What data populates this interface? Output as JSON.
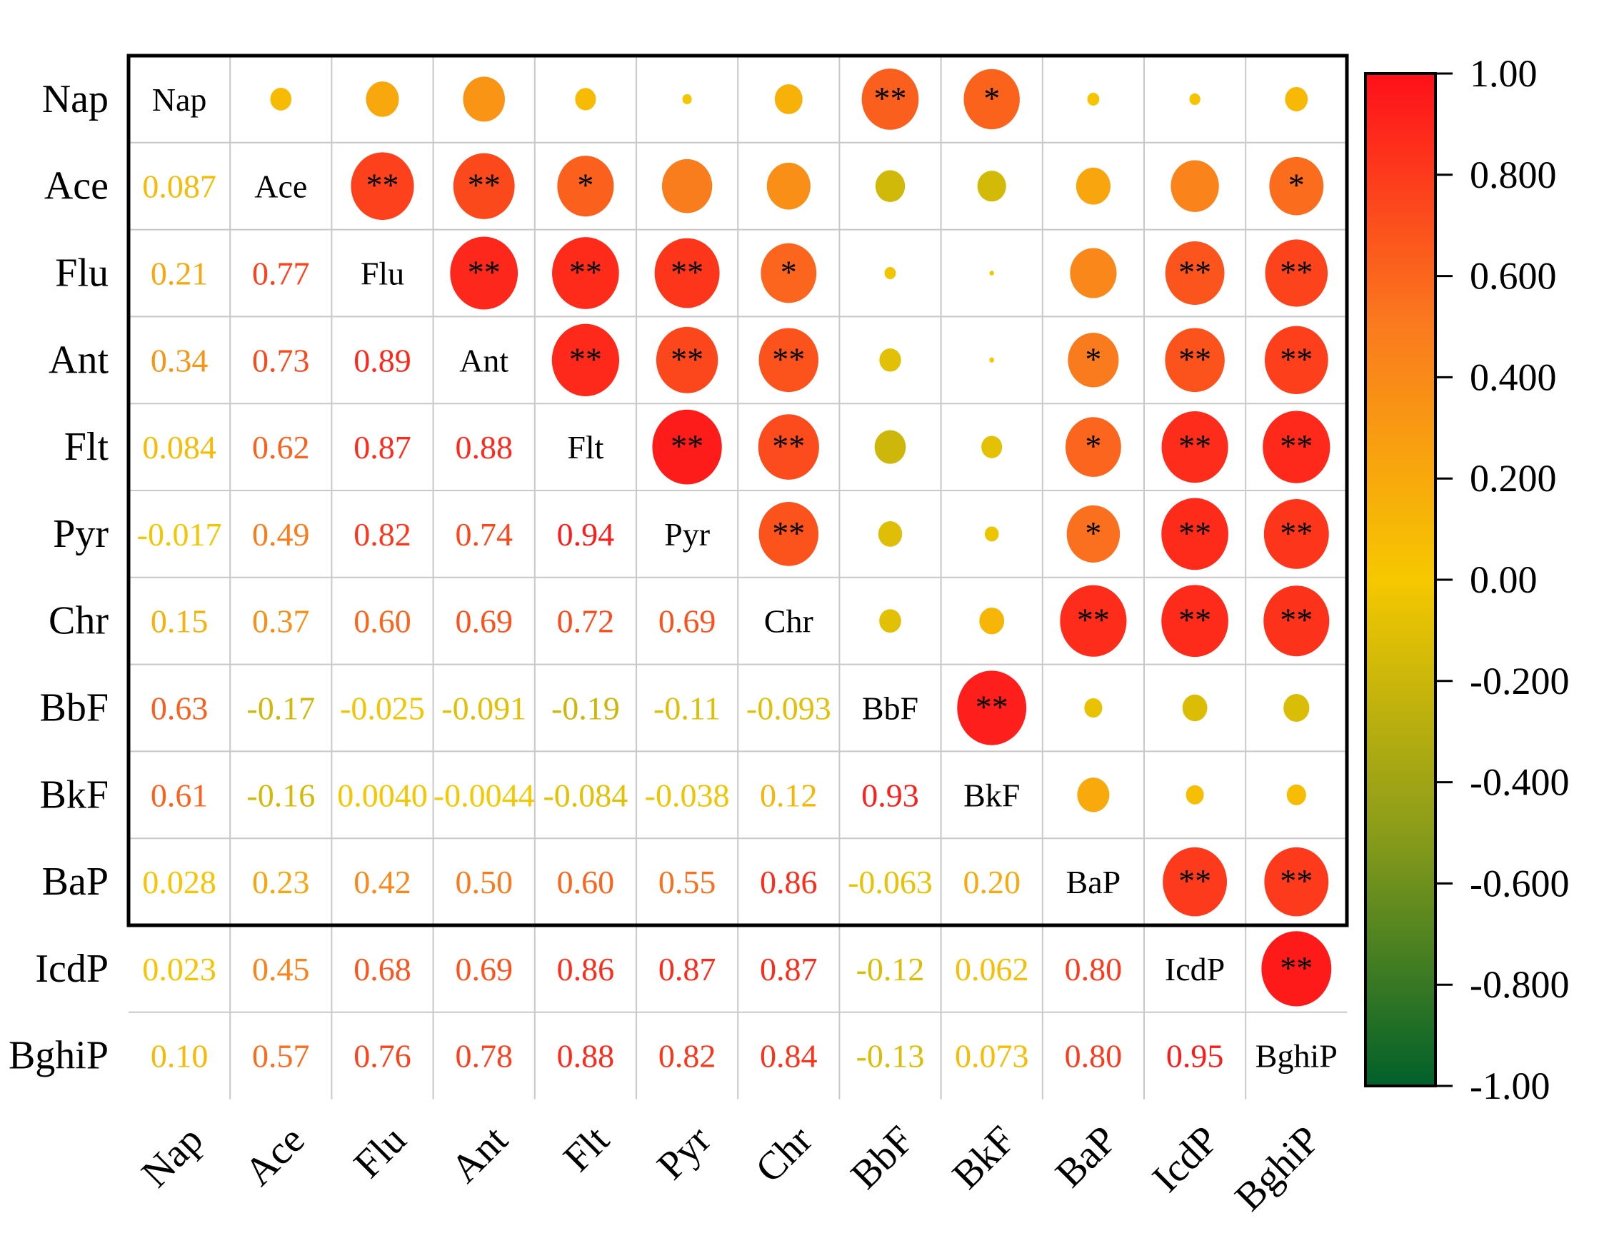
{
  "chart_data": {
    "type": "heatmap",
    "subtype": "correlation-matrix",
    "variables": [
      "Nap",
      "Ace",
      "Flu",
      "Ant",
      "Flt",
      "Pyr",
      "Chr",
      "BbF",
      "BkF",
      "BaP",
      "IcdP",
      "BghiP"
    ],
    "correlations": [
      [
        "Nap",
        "Ace",
        0.087
      ],
      [
        "Nap",
        "Flu",
        0.21
      ],
      [
        "Nap",
        "Ant",
        0.34
      ],
      [
        "Nap",
        "Flt",
        0.084
      ],
      [
        "Nap",
        "Pyr",
        -0.017
      ],
      [
        "Nap",
        "Chr",
        0.15
      ],
      [
        "Nap",
        "BbF",
        0.63
      ],
      [
        "Nap",
        "BkF",
        0.61
      ],
      [
        "Nap",
        "BaP",
        0.028
      ],
      [
        "Nap",
        "IcdP",
        0.023
      ],
      [
        "Nap",
        "BghiP",
        0.1
      ],
      [
        "Ace",
        "Flu",
        0.77
      ],
      [
        "Ace",
        "Ant",
        0.73
      ],
      [
        "Ace",
        "Flt",
        0.62
      ],
      [
        "Ace",
        "Pyr",
        0.49
      ],
      [
        "Ace",
        "Chr",
        0.37
      ],
      [
        "Ace",
        "BbF",
        -0.17
      ],
      [
        "Ace",
        "BkF",
        -0.16
      ],
      [
        "Ace",
        "BaP",
        0.23
      ],
      [
        "Ace",
        "IcdP",
        0.45
      ],
      [
        "Ace",
        "BghiP",
        0.57
      ],
      [
        "Flu",
        "Ant",
        0.89
      ],
      [
        "Flu",
        "Flt",
        0.87
      ],
      [
        "Flu",
        "Pyr",
        0.82
      ],
      [
        "Flu",
        "Chr",
        0.6
      ],
      [
        "Flu",
        "BbF",
        -0.025
      ],
      [
        "Flu",
        "BkF",
        0.004
      ],
      [
        "Flu",
        "BaP",
        0.42
      ],
      [
        "Flu",
        "IcdP",
        0.68
      ],
      [
        "Flu",
        "BghiP",
        0.76
      ],
      [
        "Ant",
        "Flt",
        0.88
      ],
      [
        "Ant",
        "Pyr",
        0.74
      ],
      [
        "Ant",
        "Chr",
        0.69
      ],
      [
        "Ant",
        "BbF",
        -0.091
      ],
      [
        "Ant",
        "BkF",
        -0.0044
      ],
      [
        "Ant",
        "BaP",
        0.5
      ],
      [
        "Ant",
        "IcdP",
        0.69
      ],
      [
        "Ant",
        "BghiP",
        0.78
      ],
      [
        "Flt",
        "Pyr",
        0.94
      ],
      [
        "Flt",
        "Chr",
        0.72
      ],
      [
        "Flt",
        "BbF",
        -0.19
      ],
      [
        "Flt",
        "BkF",
        -0.084
      ],
      [
        "Flt",
        "BaP",
        0.6
      ],
      [
        "Flt",
        "IcdP",
        0.86
      ],
      [
        "Flt",
        "BghiP",
        0.88
      ],
      [
        "Pyr",
        "Chr",
        0.69
      ],
      [
        "Pyr",
        "BbF",
        -0.11
      ],
      [
        "Pyr",
        "BkF",
        -0.038
      ],
      [
        "Pyr",
        "BaP",
        0.55
      ],
      [
        "Pyr",
        "IcdP",
        0.87
      ],
      [
        "Pyr",
        "BghiP",
        0.82
      ],
      [
        "Chr",
        "BbF",
        -0.093
      ],
      [
        "Chr",
        "BkF",
        0.12
      ],
      [
        "Chr",
        "BaP",
        0.86
      ],
      [
        "Chr",
        "IcdP",
        0.87
      ],
      [
        "Chr",
        "BghiP",
        0.84
      ],
      [
        "BbF",
        "BkF",
        0.93
      ],
      [
        "BbF",
        "BaP",
        -0.063
      ],
      [
        "BbF",
        "IcdP",
        -0.12
      ],
      [
        "BbF",
        "BghiP",
        -0.13
      ],
      [
        "BkF",
        "BaP",
        0.2
      ],
      [
        "BkF",
        "IcdP",
        0.062
      ],
      [
        "BkF",
        "BghiP",
        0.073
      ],
      [
        "BaP",
        "IcdP",
        0.8
      ],
      [
        "BaP",
        "BghiP",
        0.8
      ],
      [
        "IcdP",
        "BghiP",
        0.95
      ]
    ],
    "value_labels": {
      "Nap|Ace": "0.087",
      "Nap|Flu": "0.21",
      "Nap|Ant": "0.34",
      "Nap|Flt": "0.084",
      "Nap|Pyr": "-0.017",
      "Nap|Chr": "0.15",
      "Nap|BbF": "0.63",
      "Nap|BkF": "0.61",
      "Nap|BaP": "0.028",
      "Nap|IcdP": "0.023",
      "Nap|BghiP": "0.10",
      "Ace|Flu": "0.77",
      "Ace|Ant": "0.73",
      "Ace|Flt": "0.62",
      "Ace|Pyr": "0.49",
      "Ace|Chr": "0.37",
      "Ace|BbF": "-0.17",
      "Ace|BkF": "-0.16",
      "Ace|BaP": "0.23",
      "Ace|IcdP": "0.45",
      "Ace|BghiP": "0.57",
      "Flu|Ant": "0.89",
      "Flu|Flt": "0.87",
      "Flu|Pyr": "0.82",
      "Flu|Chr": "0.60",
      "Flu|BbF": "-0.025",
      "Flu|BkF": "0.0040",
      "Flu|BaP": "0.42",
      "Flu|IcdP": "0.68",
      "Flu|BghiP": "0.76",
      "Ant|Flt": "0.88",
      "Ant|Pyr": "0.74",
      "Ant|Chr": "0.69",
      "Ant|BbF": "-0.091",
      "Ant|BkF": "-0.0044",
      "Ant|BaP": "0.50",
      "Ant|IcdP": "0.69",
      "Ant|BghiP": "0.78",
      "Flt|Pyr": "0.94",
      "Flt|Chr": "0.72",
      "Flt|BbF": "-0.19",
      "Flt|BkF": "-0.084",
      "Flt|BaP": "0.60",
      "Flt|IcdP": "0.86",
      "Flt|BghiP": "0.88",
      "Pyr|Chr": "0.69",
      "Pyr|BbF": "-0.11",
      "Pyr|BkF": "-0.038",
      "Pyr|BaP": "0.55",
      "Pyr|IcdP": "0.87",
      "Pyr|BghiP": "0.82",
      "Chr|BbF": "-0.093",
      "Chr|BkF": "0.12",
      "Chr|BaP": "0.86",
      "Chr|IcdP": "0.87",
      "Chr|BghiP": "0.84",
      "BbF|BkF": "0.93",
      "BbF|BaP": "-0.063",
      "BbF|IcdP": "-0.12",
      "BbF|BghiP": "-0.13",
      "BkF|BaP": "0.20",
      "BkF|IcdP": "0.062",
      "BkF|BghiP": "0.073",
      "BaP|IcdP": "0.80",
      "BaP|BghiP": "0.80",
      "IcdP|BghiP": "0.95"
    },
    "significance": {
      "Nap|BbF": "**",
      "Nap|BkF": "*",
      "Ace|Flu": "**",
      "Ace|Ant": "**",
      "Ace|Flt": "*",
      "Ace|BghiP": "*",
      "Flu|Ant": "**",
      "Flu|Flt": "**",
      "Flu|Pyr": "**",
      "Flu|Chr": "*",
      "Flu|IcdP": "**",
      "Flu|BghiP": "**",
      "Ant|Flt": "**",
      "Ant|Pyr": "**",
      "Ant|Chr": "**",
      "Ant|BaP": "*",
      "Ant|IcdP": "**",
      "Ant|BghiP": "**",
      "Flt|Pyr": "**",
      "Flt|Chr": "**",
      "Flt|BaP": "*",
      "Flt|IcdP": "**",
      "Flt|BghiP": "**",
      "Pyr|Chr": "**",
      "Pyr|BaP": "*",
      "Pyr|IcdP": "**",
      "Pyr|BghiP": "**",
      "Chr|BaP": "**",
      "Chr|IcdP": "**",
      "Chr|BghiP": "**",
      "BbF|BkF": "**",
      "BaP|IcdP": "**",
      "BaP|BghiP": "**",
      "IcdP|BghiP": "**"
    },
    "upper_triangle": "circles",
    "lower_triangle": "numbers",
    "colorbar": {
      "range": [
        -1.0,
        1.0
      ],
      "tick_labels": [
        "1.00",
        "0.800",
        "0.600",
        "0.400",
        "0.200",
        "0.00",
        "-0.200",
        "-0.400",
        "-0.600",
        "-0.800",
        "-1.00"
      ],
      "colors": {
        "neg_end": "#00602a",
        "neg_mid": "#8a9c1a",
        "zero": "#f6c800",
        "pos_mid": "#fa7b1e",
        "pos_end": "#ff0f1a"
      }
    }
  }
}
